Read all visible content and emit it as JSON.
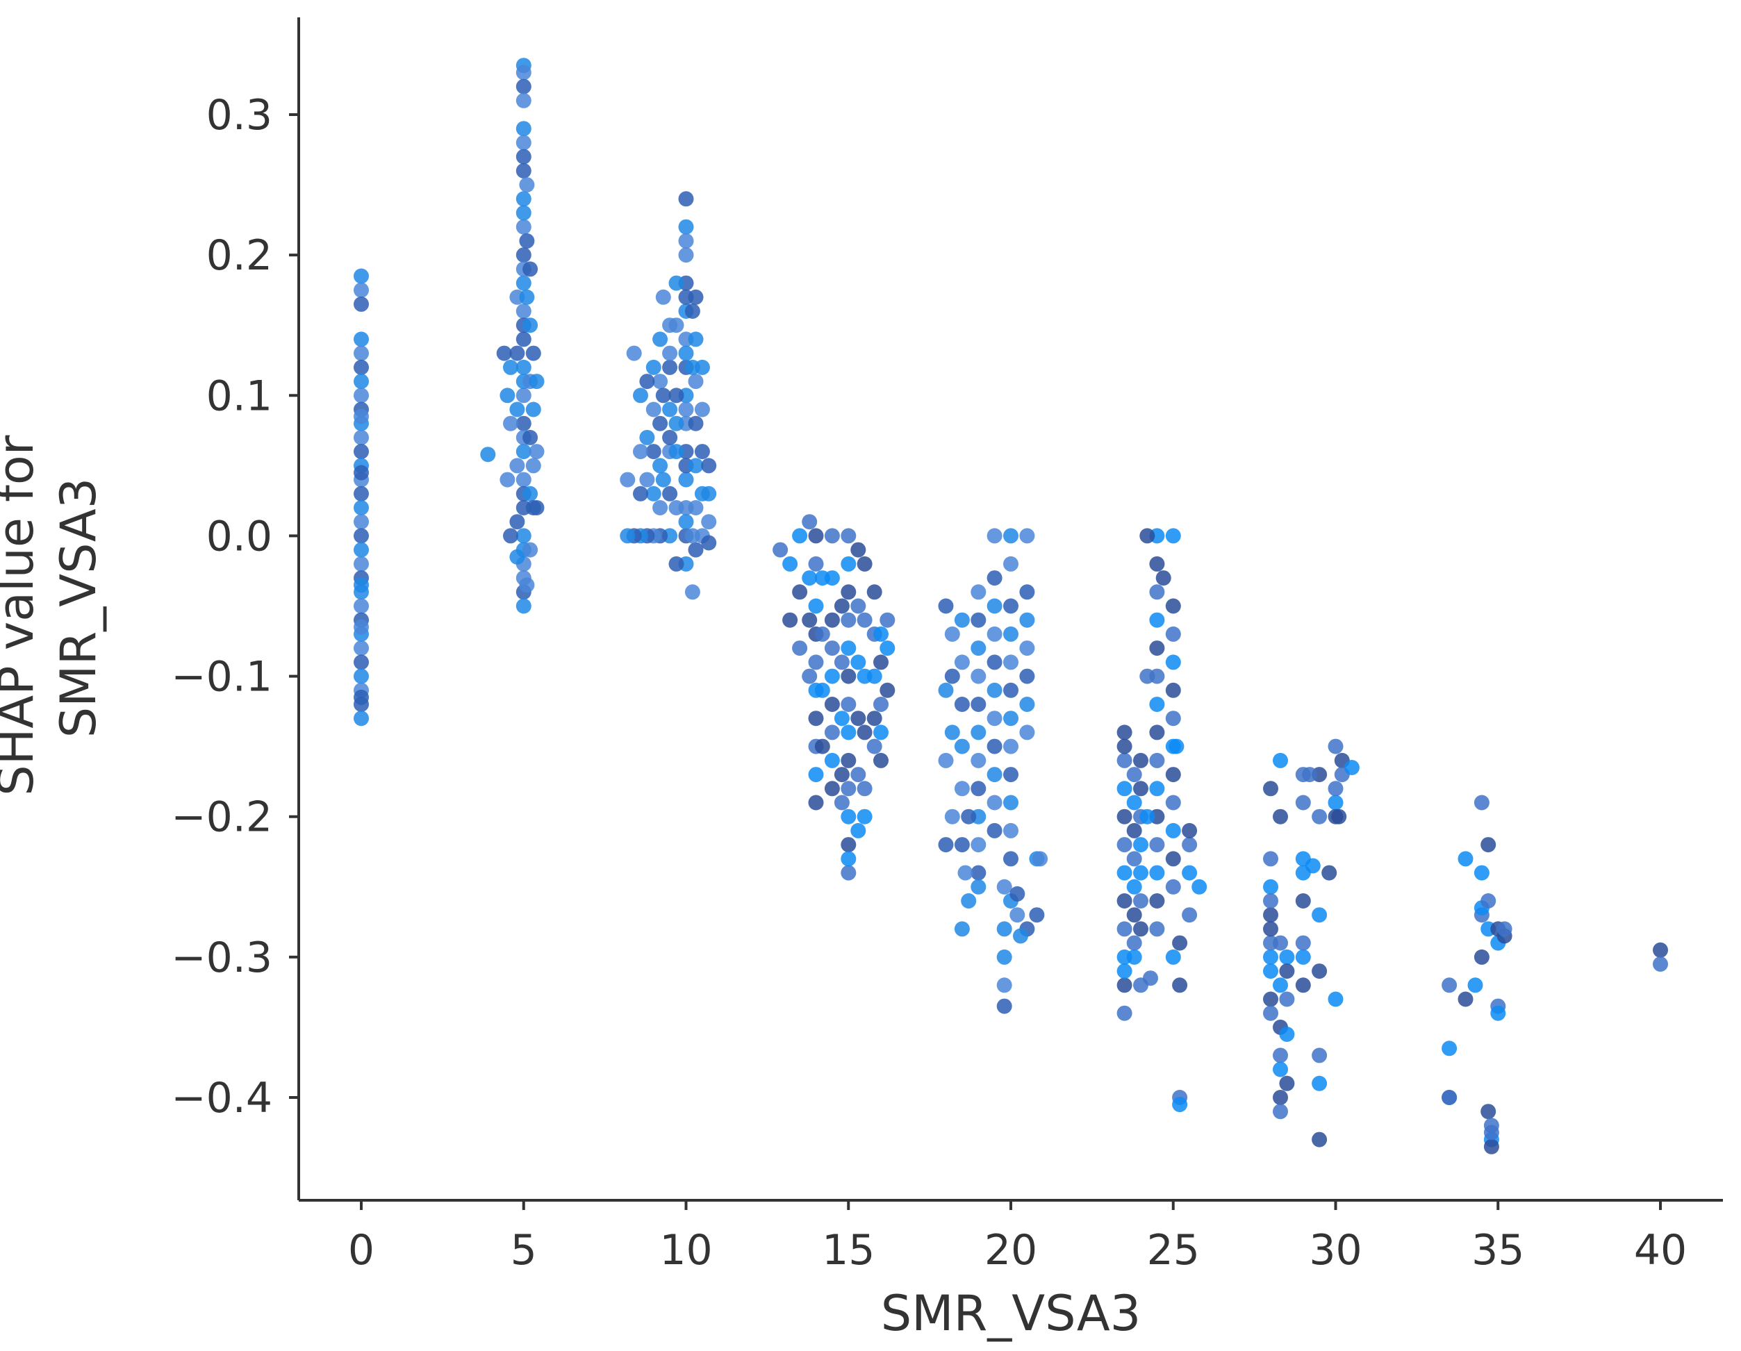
{
  "chart_data": {
    "type": "scatter",
    "xlabel": "SMR_VSA3",
    "ylabel_lines": [
      "SHAP value for",
      "SMR_VSA3"
    ],
    "xlim": [
      -2,
      42
    ],
    "ylim": [
      -0.47,
      0.37
    ],
    "xticks": [
      0,
      5,
      10,
      15,
      20,
      25,
      30,
      35,
      40
    ],
    "xtick_labels": [
      "0",
      "5",
      "10",
      "15",
      "20",
      "25",
      "30",
      "35",
      "40"
    ],
    "yticks": [
      -0.4,
      -0.3,
      -0.2,
      -0.1,
      0.0,
      0.1,
      0.2,
      0.3
    ],
    "ytick_labels": [
      "−0.4",
      "−0.3",
      "−0.2",
      "−0.1",
      "0.0",
      "0.1",
      "0.2",
      "0.3"
    ],
    "grid": false,
    "colors": [
      "#1e88e5",
      "#0d8bf5",
      "#2d5fb5",
      "#3f73c9",
      "#4a86d8",
      "#2a4d99"
    ],
    "series": [
      {
        "x": [
          0,
          0,
          0,
          0,
          0,
          0,
          0,
          0,
          0,
          0,
          0,
          0,
          0,
          0,
          0,
          0,
          0,
          0,
          0,
          0,
          0,
          0,
          0,
          0,
          0,
          0,
          0,
          0,
          0,
          0,
          0,
          0,
          0,
          0,
          0,
          0
        ],
        "y": [
          0.185,
          0.175,
          0.165,
          0.14,
          0.13,
          0.12,
          0.11,
          0.1,
          0.09,
          0.08,
          0.07,
          0.06,
          0.05,
          0.04,
          0.03,
          0.02,
          0.01,
          0.0,
          -0.01,
          -0.02,
          -0.03,
          -0.04,
          -0.05,
          -0.06,
          -0.07,
          -0.08,
          -0.09,
          -0.1,
          -0.11,
          -0.12,
          -0.13,
          0.085,
          0.045,
          -0.035,
          -0.065,
          -0.115
        ]
      },
      {
        "x": [
          5,
          5,
          5,
          5,
          5,
          5,
          5,
          5,
          5,
          5,
          5,
          5,
          5,
          5,
          5,
          5,
          5,
          5,
          5,
          5,
          5,
          5,
          5,
          5,
          5,
          5,
          5,
          5,
          5,
          5,
          5,
          5,
          4.8,
          4.8,
          4.8,
          4.8,
          4.8,
          4.8,
          5.2,
          5.2,
          5.2,
          5.2,
          5.2,
          5.2,
          5.3,
          5.3,
          5.3,
          5.3,
          5.4,
          5.4,
          5.4,
          4.6,
          4.6,
          4.6,
          4.5,
          4.5,
          4.4,
          3.9,
          5.1,
          5.1,
          5.1,
          5.1
        ],
        "y": [
          0.335,
          0.33,
          0.32,
          0.29,
          0.28,
          0.26,
          0.24,
          0.22,
          0.2,
          0.18,
          0.16,
          0.14,
          0.12,
          0.1,
          0.08,
          0.06,
          0.04,
          0.02,
          0.0,
          -0.02,
          -0.04,
          -0.05,
          0.31,
          0.27,
          0.23,
          0.19,
          0.15,
          0.11,
          0.07,
          0.03,
          -0.01,
          -0.03,
          0.13,
          0.09,
          0.05,
          0.01,
          -0.015,
          0.17,
          0.19,
          0.15,
          0.11,
          0.07,
          0.03,
          -0.01,
          0.13,
          0.09,
          0.05,
          0.02,
          0.11,
          0.06,
          0.02,
          0.12,
          0.08,
          0.0,
          0.1,
          0.04,
          0.13,
          0.058,
          0.25,
          0.21,
          0.17,
          -0.035
        ]
      },
      {
        "x": [
          10,
          10,
          10,
          10,
          10,
          10,
          10,
          10,
          10,
          10,
          10,
          10,
          10,
          10,
          10,
          10,
          10,
          10,
          10,
          10,
          9.5,
          9.5,
          9.5,
          9.5,
          9.5,
          9.5,
          9.5,
          9.5,
          9.2,
          9.2,
          9.2,
          9.2,
          9.2,
          9.2,
          9.0,
          9.0,
          9.0,
          9.0,
          9.0,
          8.8,
          8.8,
          8.8,
          8.8,
          8.6,
          8.6,
          8.6,
          8.6,
          8.4,
          8.4,
          8.2,
          8.2,
          10.3,
          10.3,
          10.3,
          10.3,
          10.3,
          10.3,
          10.3,
          10.5,
          10.5,
          10.5,
          10.5,
          10.5,
          10.7,
          10.7,
          10.7,
          10.7,
          9.7,
          9.7,
          9.7,
          9.7,
          9.7,
          9.7,
          9.7,
          9.3,
          9.3,
          9.3,
          10.2,
          10.2,
          10.2,
          10.2
        ],
        "y": [
          0.24,
          0.22,
          0.2,
          0.18,
          0.16,
          0.14,
          0.12,
          0.1,
          0.08,
          0.06,
          0.04,
          0.02,
          0.0,
          -0.02,
          0.21,
          0.17,
          0.13,
          0.09,
          0.05,
          0.01,
          0.15,
          0.12,
          0.09,
          0.06,
          0.03,
          0.0,
          0.13,
          0.07,
          0.14,
          0.11,
          0.08,
          0.05,
          0.02,
          0.0,
          0.12,
          0.09,
          0.06,
          0.03,
          0.0,
          0.11,
          0.07,
          0.04,
          0.0,
          0.1,
          0.06,
          0.03,
          0.0,
          0.13,
          0.0,
          0.0,
          0.04,
          0.17,
          0.14,
          0.11,
          0.08,
          0.05,
          0.02,
          -0.01,
          0.12,
          0.09,
          0.06,
          0.03,
          0.0,
          0.05,
          0.03,
          0.01,
          -0.005,
          0.18,
          0.15,
          0.1,
          0.06,
          0.02,
          -0.02,
          0.08,
          0.17,
          0.1,
          0.04,
          -0.04,
          0.16,
          0.12,
          0.0
        ],
        "z": []
      },
      {
        "x": [
          14,
          14,
          14,
          14,
          14,
          14,
          14,
          14,
          14,
          14,
          14.5,
          14.5,
          14.5,
          14.5,
          14.5,
          14.5,
          14.5,
          14.5,
          14.5,
          15,
          15,
          15,
          15,
          15,
          15,
          15,
          15,
          15,
          15,
          15,
          15,
          15,
          15,
          15.3,
          15.3,
          15.3,
          15.3,
          15.3,
          15.3,
          15.5,
          15.5,
          15.5,
          15.5,
          15.5,
          15.5,
          15.8,
          15.8,
          15.8,
          15.8,
          15.8,
          16,
          16,
          16,
          16,
          16,
          13.8,
          13.8,
          13.8,
          13.8,
          13.5,
          13.5,
          13.5,
          13.2,
          13.2,
          12.9,
          14.2,
          14.2,
          14.2,
          14.2,
          14.8,
          14.8,
          14.8,
          14.8,
          14.8,
          16.2,
          16.2,
          16.2
        ],
        "y": [
          0.0,
          -0.02,
          -0.05,
          -0.07,
          -0.09,
          -0.11,
          -0.13,
          -0.15,
          -0.17,
          -0.19,
          0.0,
          -0.03,
          -0.06,
          -0.08,
          -0.1,
          -0.12,
          -0.14,
          -0.16,
          -0.18,
          0.0,
          -0.02,
          -0.04,
          -0.06,
          -0.08,
          -0.1,
          -0.12,
          -0.14,
          -0.16,
          -0.18,
          -0.2,
          -0.22,
          -0.24,
          -0.23,
          -0.01,
          -0.05,
          -0.09,
          -0.13,
          -0.17,
          -0.21,
          -0.02,
          -0.06,
          -0.1,
          -0.14,
          -0.18,
          -0.2,
          -0.04,
          -0.07,
          -0.1,
          -0.13,
          -0.15,
          -0.07,
          -0.09,
          -0.12,
          -0.14,
          -0.16,
          0.01,
          -0.03,
          -0.06,
          -0.1,
          0.0,
          -0.04,
          -0.08,
          -0.02,
          -0.06,
          -0.01,
          -0.11,
          -0.15,
          -0.07,
          -0.03,
          -0.05,
          -0.09,
          -0.13,
          -0.17,
          -0.19,
          -0.08,
          -0.11,
          -0.06
        ]
      },
      {
        "x": [
          19,
          19,
          19,
          19,
          19,
          19,
          19,
          19,
          19,
          19,
          19,
          19,
          19.5,
          19.5,
          19.5,
          19.5,
          19.5,
          19.5,
          19.5,
          19.5,
          19.5,
          19.5,
          19.5,
          20,
          20,
          20,
          20,
          20,
          20,
          20,
          20,
          20,
          20,
          20,
          20,
          20,
          20.5,
          20.5,
          20.5,
          20.5,
          20.5,
          20.5,
          20.5,
          20.5,
          18.5,
          18.5,
          18.5,
          18.5,
          18.5,
          18.5,
          18.5,
          18.2,
          18.2,
          18.2,
          18.2,
          18,
          18,
          18,
          18,
          19.8,
          19.8,
          19.8,
          19.8,
          19.8,
          18.7,
          18.7,
          18.6,
          20.8,
          20.8,
          20.2,
          20.2,
          20.3,
          20.9
        ],
        "y": [
          -0.04,
          -0.06,
          -0.08,
          -0.1,
          -0.12,
          -0.14,
          -0.16,
          -0.18,
          -0.2,
          -0.22,
          -0.24,
          -0.25,
          0.0,
          -0.03,
          -0.05,
          -0.07,
          -0.09,
          -0.11,
          -0.13,
          -0.15,
          -0.17,
          -0.19,
          -0.21,
          0.0,
          -0.02,
          -0.05,
          -0.07,
          -0.09,
          -0.11,
          -0.13,
          -0.15,
          -0.17,
          -0.19,
          -0.21,
          -0.23,
          -0.26,
          0.0,
          -0.04,
          -0.06,
          -0.08,
          -0.1,
          -0.12,
          -0.14,
          -0.28,
          -0.06,
          -0.09,
          -0.12,
          -0.15,
          -0.18,
          -0.22,
          -0.28,
          -0.07,
          -0.1,
          -0.14,
          -0.2,
          -0.05,
          -0.11,
          -0.16,
          -0.22,
          -0.3,
          -0.32,
          -0.335,
          -0.28,
          -0.25,
          -0.2,
          -0.26,
          -0.24,
          -0.27,
          -0.23,
          -0.27,
          -0.255,
          -0.285,
          -0.23
        ]
      },
      {
        "x": [
          23.5,
          23.5,
          23.5,
          23.5,
          23.5,
          23.5,
          23.5,
          23.5,
          23.5,
          23.5,
          23.5,
          23.5,
          23.5,
          23.8,
          23.8,
          23.8,
          23.8,
          23.8,
          23.8,
          23.8,
          23.8,
          24,
          24,
          24,
          24,
          24,
          24,
          24,
          24,
          24.5,
          24.5,
          24.5,
          24.5,
          24.5,
          24.5,
          24.5,
          24.5,
          24.5,
          24.5,
          24.5,
          24.5,
          24.5,
          24.5,
          24.5,
          25,
          25,
          25,
          25,
          25,
          25,
          25,
          25,
          25,
          25,
          25,
          25,
          25,
          25.2,
          25.2,
          25.2,
          25.2,
          25.5,
          25.5,
          25.5,
          25.5,
          25.8,
          24.2,
          24.2,
          24.2,
          24.7,
          24.3,
          25.1
        ],
        "y": [
          -0.14,
          -0.16,
          -0.18,
          -0.2,
          -0.22,
          -0.24,
          -0.26,
          -0.28,
          -0.3,
          -0.32,
          -0.34,
          -0.31,
          -0.15,
          -0.17,
          -0.19,
          -0.21,
          -0.23,
          -0.25,
          -0.27,
          -0.29,
          -0.3,
          -0.16,
          -0.2,
          -0.24,
          -0.28,
          -0.26,
          -0.22,
          -0.18,
          -0.32,
          0.0,
          -0.02,
          -0.04,
          -0.06,
          -0.08,
          -0.1,
          -0.12,
          -0.14,
          -0.16,
          -0.18,
          -0.2,
          -0.22,
          -0.24,
          -0.26,
          -0.28,
          0.0,
          -0.05,
          -0.07,
          -0.09,
          -0.11,
          -0.13,
          -0.15,
          -0.17,
          -0.19,
          -0.21,
          -0.23,
          -0.25,
          -0.3,
          -0.32,
          -0.4,
          -0.405,
          -0.29,
          -0.22,
          -0.24,
          -0.21,
          -0.27,
          -0.25,
          0.0,
          -0.1,
          -0.2,
          -0.03,
          -0.315,
          -0.15
        ]
      },
      {
        "x": [
          28,
          28,
          28,
          28,
          28,
          28,
          28,
          28,
          28,
          28,
          28,
          28.3,
          28.3,
          28.3,
          28.3,
          28.3,
          28.3,
          28.3,
          28.3,
          28.3,
          28.5,
          28.5,
          28.5,
          28.5,
          28.5,
          29,
          29,
          29,
          29,
          29,
          29,
          29,
          29,
          29.5,
          29.5,
          29.5,
          29.5,
          29.5,
          29.5,
          29.5,
          30,
          30,
          30,
          30,
          30,
          30.2,
          30.2,
          30.5,
          29.8,
          29.2,
          29.3,
          30.1
        ],
        "y": [
          -0.18,
          -0.23,
          -0.25,
          -0.27,
          -0.29,
          -0.31,
          -0.33,
          -0.34,
          -0.3,
          -0.28,
          -0.26,
          -0.16,
          -0.2,
          -0.29,
          -0.32,
          -0.35,
          -0.37,
          -0.38,
          -0.4,
          -0.41,
          -0.3,
          -0.31,
          -0.33,
          -0.355,
          -0.39,
          -0.17,
          -0.24,
          -0.26,
          -0.29,
          -0.3,
          -0.32,
          -0.19,
          -0.23,
          -0.17,
          -0.2,
          -0.27,
          -0.31,
          -0.37,
          -0.39,
          -0.43,
          -0.15,
          -0.19,
          -0.2,
          -0.18,
          -0.33,
          -0.16,
          -0.17,
          -0.165,
          -0.24,
          -0.17,
          -0.235,
          -0.2
        ]
      },
      {
        "x": [
          33.5,
          33.5,
          33.5,
          33.5,
          34,
          34,
          34.5,
          34.5,
          34.5,
          34.5,
          34.5,
          34.7,
          34.7,
          34.7,
          34.7,
          34.8,
          34.8,
          34.8,
          34.8,
          35,
          35,
          35,
          35,
          35.2,
          35.2,
          34.3
        ],
        "y": [
          -0.32,
          -0.365,
          -0.4,
          -0.4,
          -0.23,
          -0.33,
          -0.27,
          -0.265,
          -0.3,
          -0.19,
          -0.24,
          -0.22,
          -0.26,
          -0.28,
          -0.41,
          -0.42,
          -0.43,
          -0.435,
          -0.425,
          -0.29,
          -0.28,
          -0.335,
          -0.34,
          -0.285,
          -0.28,
          -0.32
        ]
      },
      {
        "x": [
          40,
          40
        ],
        "y": [
          -0.295,
          -0.305
        ]
      }
    ]
  }
}
